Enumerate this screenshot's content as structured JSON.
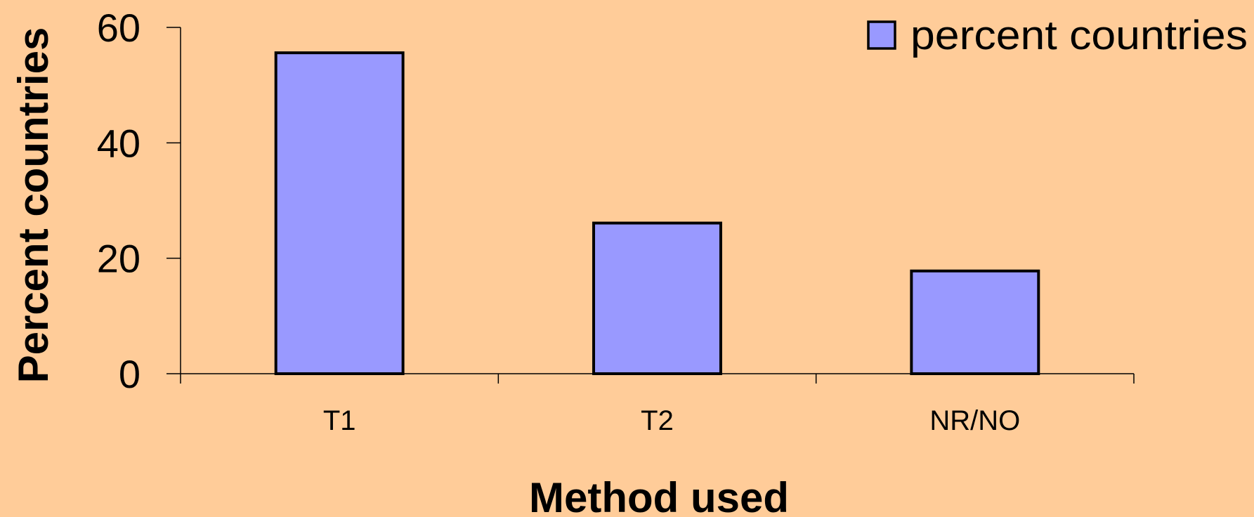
{
  "chart_data": {
    "type": "bar",
    "categories": [
      "T1",
      "T2",
      "NR/NO"
    ],
    "series": [
      {
        "name": "percent countries",
        "values": [
          55.6,
          26.1,
          17.8
        ]
      }
    ],
    "xlabel": "Method used",
    "ylabel": "Percent countries",
    "ylim": [
      0,
      60
    ],
    "yticks": [
      0,
      20,
      40,
      60
    ],
    "grid": false,
    "legend": "top-right"
  },
  "colors": {
    "background": "#FFCC99",
    "bar_fill": "#9999FF",
    "bar_stroke": "#000000",
    "axis": "#000000"
  }
}
